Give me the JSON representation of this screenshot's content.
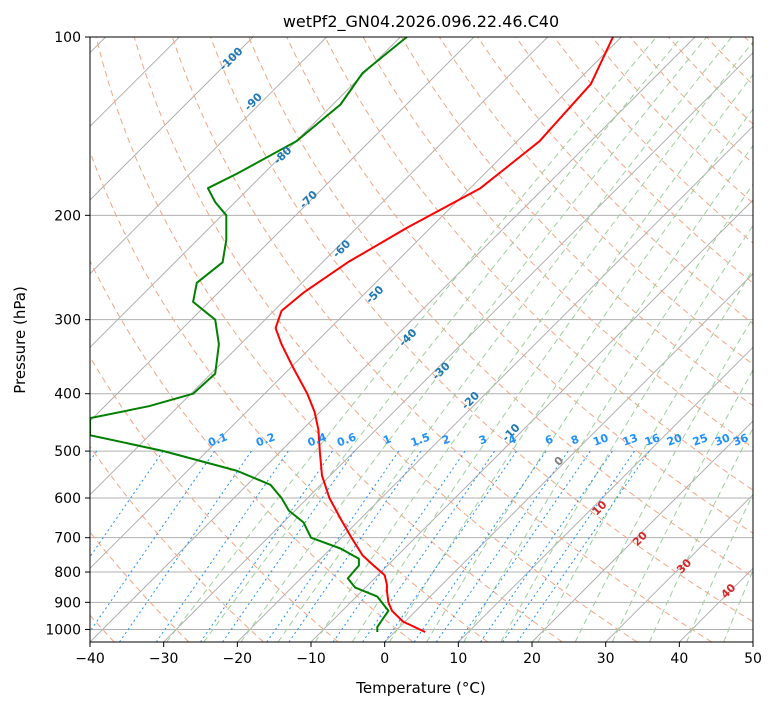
{
  "chart_data": {
    "type": "line",
    "title": "wetPf2_GN04.2026.096.22.46.C40",
    "xlabel": "Temperature (°C)",
    "ylabel": "Pressure (hPa)",
    "xlim": [
      -40,
      50
    ],
    "ylim": [
      1050,
      100
    ],
    "y_scale": "log",
    "grid": true,
    "x_ticks": [
      "−40",
      "−30",
      "−20",
      "−10",
      "0",
      "10",
      "20",
      "30",
      "40",
      "50"
    ],
    "x_tick_values": [
      -40,
      -30,
      -20,
      -10,
      0,
      10,
      20,
      30,
      40,
      50
    ],
    "y_ticks": [
      "100",
      "200",
      "300",
      "400",
      "500",
      "600",
      "700",
      "800",
      "900",
      "1000"
    ],
    "y_tick_values": [
      100,
      200,
      300,
      400,
      500,
      600,
      700,
      800,
      900,
      1000
    ],
    "series": [
      {
        "color": "#ff0000",
        "x": [
          5.5,
          2.5,
          1.0,
          0.5,
          0.3,
          0.3,
          0.0,
          -1.5,
          -3.0,
          -4.5,
          -6.0,
          -7.5,
          -8.5,
          -8.8,
          -9.0,
          -9.5,
          -10.5,
          -12.5,
          -14.0,
          -14.8,
          -14.0,
          -11.0,
          -5.0,
          3.0,
          13.0,
          21.0,
          28.0,
          31.0
        ],
        "y": [
          1010,
          970,
          930,
          900,
          860,
          840,
          810,
          780,
          750,
          700,
          650,
          600,
          550,
          500,
          460,
          430,
          400,
          360,
          330,
          310,
          290,
          270,
          240,
          210,
          180,
          150,
          120,
          100
        ]
      },
      {
        "color": "#008000",
        "x": [
          -1.0,
          -1.0,
          0.5,
          -1.0,
          -4.0,
          -5.0,
          -3.5,
          -3.5,
          -6.0,
          -10.0,
          -11.0,
          -13.0,
          -14.0,
          -15.5,
          -20.0,
          -30.0,
          -40.0,
          -40.0,
          -32.0,
          -26.0,
          -23.0,
          -22.5,
          -23.0,
          -26.0,
          -25.5,
          -22.0,
          -21.5,
          -21.5,
          -23.0,
          -24.0,
          -20.0,
          -12.0,
          -6.0,
          -3.0,
          3.0
        ],
        "y": [
          1010,
          990,
          930,
          880,
          850,
          820,
          780,
          760,
          730,
          700,
          660,
          630,
          600,
          570,
          540,
          500,
          470,
          440,
          420,
          400,
          370,
          330,
          300,
          280,
          260,
          240,
          220,
          200,
          190,
          180,
          170,
          150,
          130,
          115,
          100
        ]
      }
    ],
    "dry_adiabat_labels": [
      "-100",
      "-90",
      "-80",
      "-70",
      "-60",
      "-50",
      "-40",
      "-30",
      "-20",
      "-10"
    ],
    "dry_adiabat_positions": [
      {
        "T": -20.5,
        "p": 110
      },
      {
        "T": -17.5,
        "p": 130
      },
      {
        "T": -13.5,
        "p": 160
      },
      {
        "T": -10.0,
        "p": 190
      },
      {
        "T": -5.5,
        "p": 230
      },
      {
        "T": -1.0,
        "p": 275
      },
      {
        "T": 3.5,
        "p": 325
      },
      {
        "T": 8.0,
        "p": 370
      },
      {
        "T": 12.0,
        "p": 415
      },
      {
        "T": 17.5,
        "p": 470
      }
    ],
    "mixing_ratio_labels": [
      "0.1",
      "0.2",
      "0.4",
      "0.6",
      "1",
      "1.5",
      "2",
      "3",
      "4",
      "6",
      "8",
      "10",
      "13",
      "16",
      "20",
      "25",
      "30",
      "36"
    ],
    "mixing_ratio_x": [
      -22.5,
      -16,
      -9,
      -5,
      0.5,
      5,
      8.5,
      13.5,
      17.5,
      22.5,
      26,
      29.5,
      33.5,
      36.5,
      39.5,
      43,
      46,
      48.5
    ],
    "mixing_ratio_p": 485,
    "moist_adiabat_labels": [
      "0",
      "10",
      "20",
      "30",
      "40"
    ],
    "moist_adiabat_positions": [
      {
        "T": 24,
        "p": 525
      },
      {
        "T": 29.5,
        "p": 630
      },
      {
        "T": 35,
        "p": 710
      },
      {
        "T": 41,
        "p": 790
      },
      {
        "T": 47,
        "p": 870
      }
    ]
  }
}
